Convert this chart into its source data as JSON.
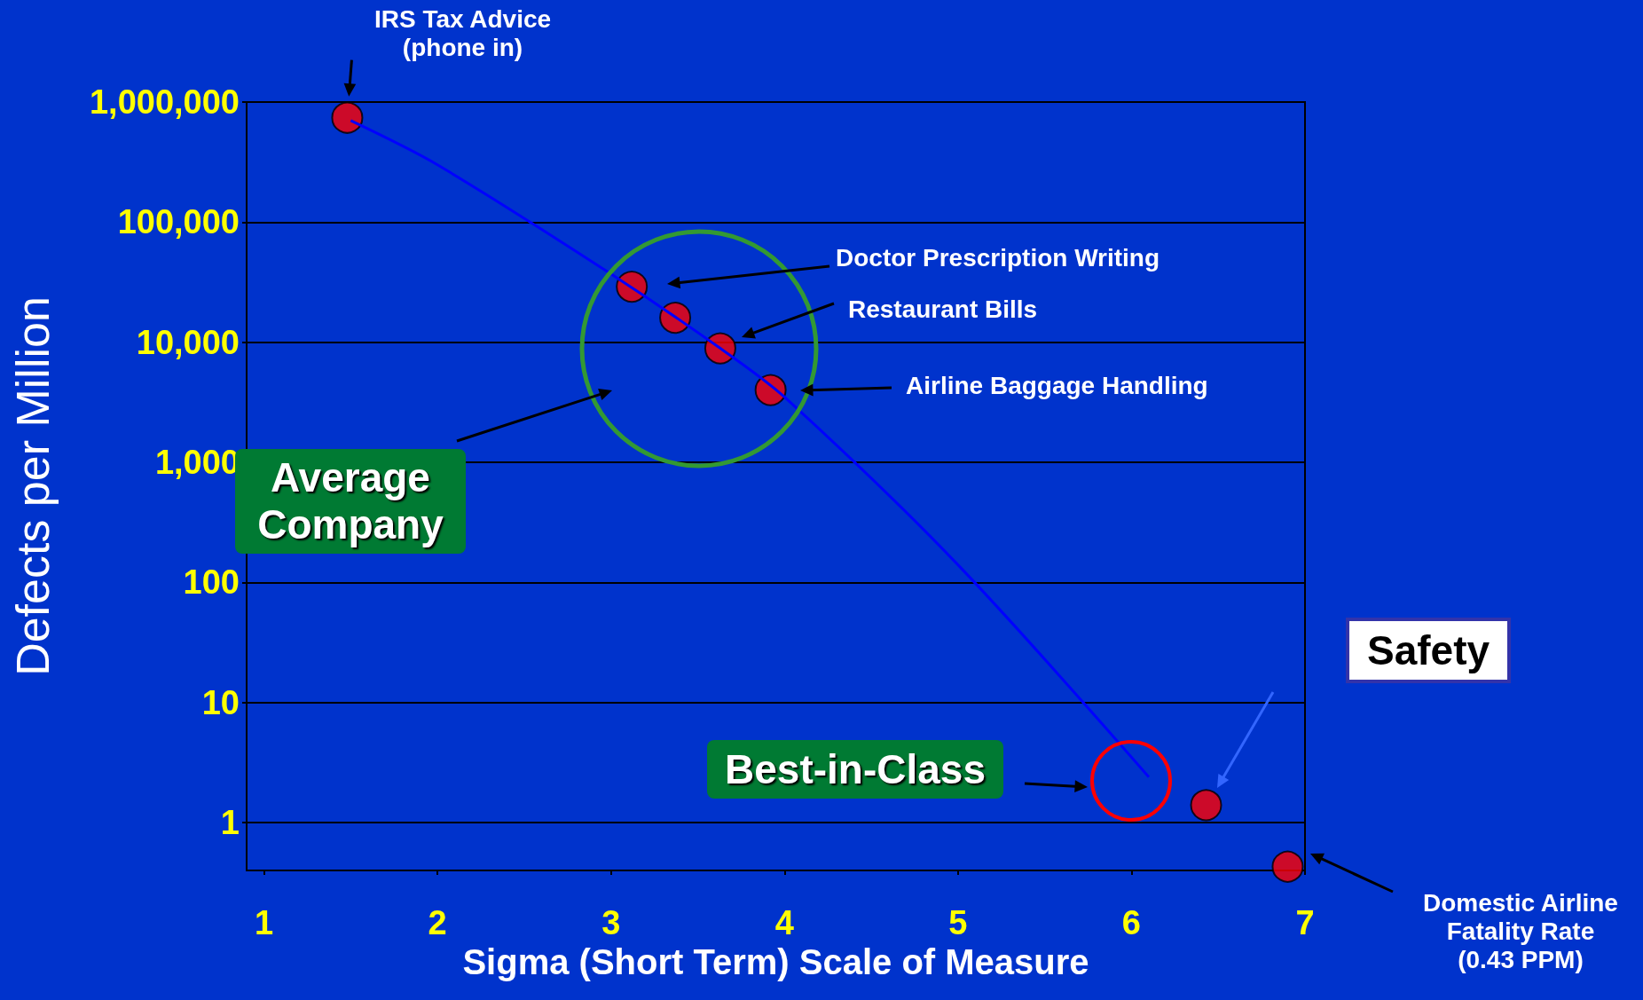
{
  "chart_data": {
    "type": "scatter",
    "xlabel": "Sigma (Short Term) Scale of Measure",
    "ylabel": "Defects per Million",
    "xlim": [
      0.9,
      7
    ],
    "xticks": [
      1,
      2,
      3,
      4,
      5,
      6,
      7
    ],
    "ylim": [
      0.4,
      1000000
    ],
    "yticks": [
      1,
      10,
      100,
      {
        "value": 1000,
        "label": "1,000"
      },
      {
        "value": 10000,
        "label": "10,000"
      },
      {
        "value": 100000,
        "label": "100,000"
      },
      {
        "value": 1000000,
        "label": "1,000,000"
      }
    ],
    "log": "y",
    "grid": "y",
    "series": [
      {
        "type": "line",
        "color": "#0000ff",
        "marker": "none",
        "x": [
          1.5,
          2,
          3,
          3.63,
          4,
          5,
          6.1
        ],
        "values": [
          700000,
          300000,
          37000,
          8900,
          3500,
          140,
          2.4
        ]
      },
      {
        "color": "#ff0000",
        "marker": "circle",
        "x": [
          1.48,
          3.12,
          3.37,
          3.63,
          3.92,
          6.43,
          6.9
        ],
        "values": [
          740000,
          29000,
          16000,
          8900,
          4000,
          1.4,
          0.43
        ]
      }
    ],
    "annotations": [
      {
        "text": "IRS Tax Advice\n(phone in)",
        "x": 1.48,
        "y": 740000
      },
      "Doctor Prescription Writing",
      "Restaurant Bills",
      "Airline Baggage Handling",
      "Average Company",
      "Best-in-Class",
      "Safety",
      "Domestic Airline\nFatality Rate\n(0.43 PPM)"
    ]
  }
}
